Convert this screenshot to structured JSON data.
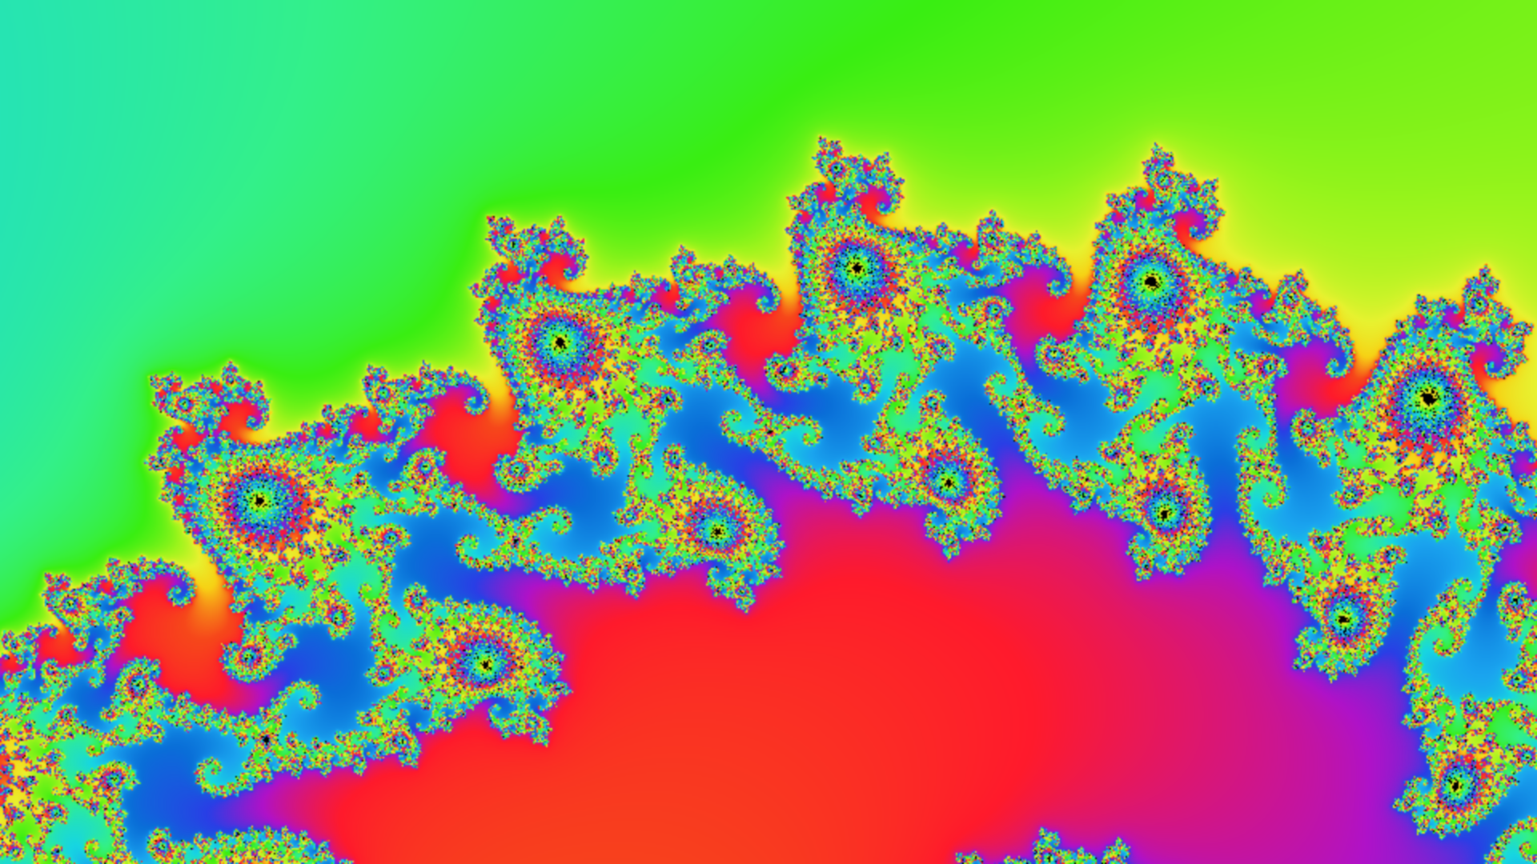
{
  "render": {
    "type": "mandelbrot",
    "center": [
      -0.743643887037151,
      0.13182590420533
    ],
    "scale": 0.0009,
    "max_iter": 520,
    "cycles": 5.6,
    "palette": [
      "#0a6fd8",
      "#1aa4ef",
      "#17d6e2",
      "#33f08a",
      "#39ee12",
      "#9cf41c",
      "#e8f230",
      "#f7d215",
      "#f6481a",
      "#ff1a2c",
      "#b012c8",
      "#2a3fe6",
      "#0a6fd8"
    ],
    "interior_color": "#000000",
    "background_color": "#1a8ce0"
  }
}
